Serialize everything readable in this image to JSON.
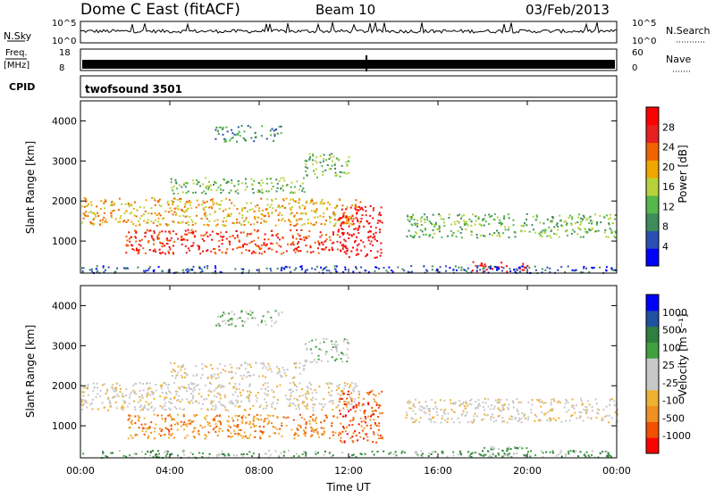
{
  "header": {
    "station": "Dome C East (fitACF)",
    "beam": "Beam 10",
    "date": "03/Feb/2013"
  },
  "top_panels": {
    "nsky_label": "N.Sky",
    "nsky_ticks": [
      "10^5",
      "10^0"
    ],
    "nsearch_label": "N.Search",
    "nsearch_ticks": [
      "10^5",
      "10^0"
    ],
    "freq_label": "Freq.",
    "freq_unit": "[MHz]",
    "freq_ticks": [
      "18",
      "8"
    ],
    "nave_label": "Nave",
    "nave_ticks": [
      "60",
      "0"
    ],
    "cpid_label": "CPID",
    "cpid_value": "twofsound 3501"
  },
  "chart_data": [
    {
      "type": "heatmap",
      "name": "power-panel",
      "ylabel": "Slant Range [km]",
      "ylim": [
        200,
        4500
      ],
      "y_ticks": [
        "4000",
        "3000",
        "2000",
        "1000"
      ],
      "x_ticks": [
        "00:00",
        "04:00",
        "08:00",
        "12:00",
        "16:00",
        "20:00",
        "00:00"
      ],
      "xlim_hours": [
        0,
        24
      ],
      "colorbar": {
        "label": "Power [dB]",
        "ticks": [
          "28",
          "24",
          "20",
          "16",
          "12",
          "8",
          "4"
        ],
        "colors": [
          "#0000ff",
          "#2a4fb4",
          "#3d8c5a",
          "#55b84a",
          "#b8d23a",
          "#f0a800",
          "#f06400",
          "#e82020",
          "#ff0000"
        ]
      },
      "echo_bands": [
        {
          "t0": 0.0,
          "t1": 12.5,
          "r0": 1400,
          "r1": 2100,
          "level": 5
        },
        {
          "t0": 2.0,
          "t1": 11.5,
          "r0": 700,
          "r1": 1300,
          "level": 7
        },
        {
          "t0": 11.5,
          "t1": 13.5,
          "r0": 600,
          "r1": 1900,
          "level": 8
        },
        {
          "t0": 4.0,
          "t1": 10.0,
          "r0": 2200,
          "r1": 2600,
          "level": 3
        },
        {
          "t0": 6.0,
          "t1": 9.0,
          "r0": 3500,
          "r1": 3900,
          "level": 2
        },
        {
          "t0": 14.5,
          "t1": 24.0,
          "r0": 1100,
          "r1": 1700,
          "level": 3
        },
        {
          "t0": 17.5,
          "t1": 20.0,
          "r0": 250,
          "r1": 500,
          "level": 8
        },
        {
          "t0": 0.0,
          "t1": 24.0,
          "r0": 220,
          "r1": 400,
          "level": 1
        },
        {
          "t0": 10.0,
          "t1": 12.0,
          "r0": 2600,
          "r1": 3200,
          "level": 3
        }
      ]
    },
    {
      "type": "heatmap",
      "name": "velocity-panel",
      "ylabel": "Slant Range [km]",
      "ylim": [
        200,
        4500
      ],
      "y_ticks": [
        "4000",
        "3000",
        "2000",
        "1000"
      ],
      "x_ticks": [
        "00:00",
        "04:00",
        "08:00",
        "12:00",
        "16:00",
        "20:00",
        "00:00"
      ],
      "xlabel": "Time UT",
      "xlim_hours": [
        0,
        24
      ],
      "colorbar": {
        "label": "Velocity [m s⁻¹]",
        "ticks": [
          "1000",
          "500",
          "100",
          "25",
          "-25",
          "-100",
          "-500",
          "-1000"
        ],
        "colors": [
          "#ff0000",
          "#f05000",
          "#f09020",
          "#f0b030",
          "#c8c8c8",
          "#c8c8c8",
          "#40a040",
          "#2f7f3f",
          "#2050a0",
          "#0000ff"
        ]
      },
      "echo_bands": [
        {
          "t0": 0.0,
          "t1": 12.5,
          "r0": 1400,
          "r1": 2100,
          "level": 4
        },
        {
          "t0": 2.0,
          "t1": 11.5,
          "r0": 700,
          "r1": 1300,
          "level": 2
        },
        {
          "t0": 11.5,
          "t1": 13.5,
          "r0": 600,
          "r1": 1900,
          "level": 1
        },
        {
          "t0": 4.0,
          "t1": 10.0,
          "r0": 2200,
          "r1": 2600,
          "level": 4
        },
        {
          "t0": 6.0,
          "t1": 9.0,
          "r0": 3500,
          "r1": 3900,
          "level": 5
        },
        {
          "t0": 14.5,
          "t1": 24.0,
          "r0": 1100,
          "r1": 1700,
          "level": 4
        },
        {
          "t0": 17.5,
          "t1": 20.0,
          "r0": 250,
          "r1": 500,
          "level": 6
        },
        {
          "t0": 0.0,
          "t1": 24.0,
          "r0": 220,
          "r1": 400,
          "level": 6
        },
        {
          "t0": 10.0,
          "t1": 12.0,
          "r0": 2600,
          "r1": 3200,
          "level": 5
        }
      ]
    }
  ]
}
